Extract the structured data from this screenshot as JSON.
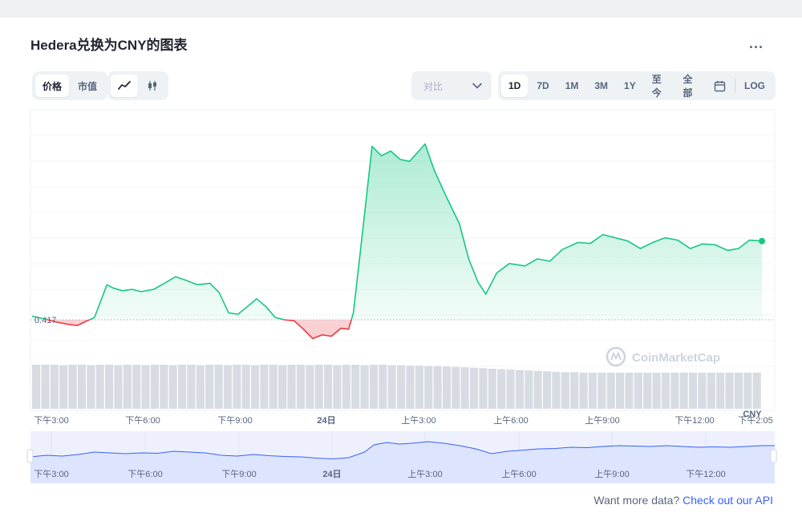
{
  "title": "Hedera兑换为CNY的图表",
  "more_label": "...",
  "metric_tabs": [
    {
      "label": "价格",
      "active": true
    },
    {
      "label": "市值",
      "active": false
    }
  ],
  "chart_type_icons": [
    {
      "icon": "line-chart-icon",
      "active": true
    },
    {
      "icon": "candlestick-icon",
      "active": false
    }
  ],
  "compare": {
    "placeholder": "对比",
    "icon": "chevron-down-icon"
  },
  "ranges": [
    {
      "label": "1D",
      "active": true
    },
    {
      "label": "7D",
      "active": false
    },
    {
      "label": "1M",
      "active": false
    },
    {
      "label": "3M",
      "active": false
    },
    {
      "label": "1Y",
      "active": false
    },
    {
      "label": "至今",
      "active": false
    },
    {
      "label": "全部",
      "active": false
    }
  ],
  "calendar_icon": "calendar-icon",
  "log_label": "LOG",
  "watermark": "CoinMarketCap",
  "footer": {
    "text": "Want more data?",
    "link": "Check out our API"
  },
  "colors": {
    "up": "#16c784",
    "down": "#ea3943",
    "nav_line": "#3861fb",
    "nav_fill": "#dde4fd"
  },
  "chart_data": {
    "type": "line",
    "currency_label": "CNY",
    "reference_value": 0.417,
    "reference_label": "0.417",
    "x_ticks": [
      "下午3:00",
      "下午6:00",
      "下午9:00",
      "24日",
      "上午3:00",
      "上午6:00",
      "上午9:00",
      "下午12:00",
      "下午2:05"
    ],
    "nav_ticks": [
      "下午3:00",
      "下午6:00",
      "下午9:00",
      "24日",
      "上午3:00",
      "上午6:00",
      "上午9:00",
      "下午12:00"
    ],
    "price_series": [
      [
        0,
        0.4178
      ],
      [
        0.4,
        0.4172
      ],
      [
        0.8,
        0.4165
      ],
      [
        1.2,
        0.416
      ],
      [
        1.45,
        0.4158
      ],
      [
        1.7,
        0.4166
      ],
      [
        2.0,
        0.4175
      ],
      [
        2.2,
        0.421
      ],
      [
        2.4,
        0.4245
      ],
      [
        2.6,
        0.4238
      ],
      [
        2.9,
        0.4232
      ],
      [
        3.2,
        0.4235
      ],
      [
        3.5,
        0.423
      ],
      [
        3.9,
        0.4235
      ],
      [
        4.3,
        0.425
      ],
      [
        4.6,
        0.4262
      ],
      [
        4.9,
        0.4255
      ],
      [
        5.3,
        0.4245
      ],
      [
        5.7,
        0.4248
      ],
      [
        6.0,
        0.4228
      ],
      [
        6.3,
        0.4185
      ],
      [
        6.6,
        0.4182
      ],
      [
        6.9,
        0.4198
      ],
      [
        7.2,
        0.4215
      ],
      [
        7.5,
        0.4198
      ],
      [
        7.8,
        0.4175
      ],
      [
        8.1,
        0.417
      ],
      [
        8.4,
        0.4168
      ],
      [
        8.7,
        0.415
      ],
      [
        9.0,
        0.413
      ],
      [
        9.3,
        0.4138
      ],
      [
        9.6,
        0.4135
      ],
      [
        9.9,
        0.4152
      ],
      [
        10.15,
        0.415
      ],
      [
        10.3,
        0.4185
      ],
      [
        10.5,
        0.43
      ],
      [
        10.75,
        0.445
      ],
      [
        10.9,
        0.454
      ],
      [
        11.2,
        0.452
      ],
      [
        11.5,
        0.453
      ],
      [
        11.8,
        0.4512
      ],
      [
        12.1,
        0.4508
      ],
      [
        12.4,
        0.453
      ],
      [
        12.6,
        0.4545
      ],
      [
        12.9,
        0.4488
      ],
      [
        13.3,
        0.443
      ],
      [
        13.7,
        0.4375
      ],
      [
        14.0,
        0.43
      ],
      [
        14.3,
        0.425
      ],
      [
        14.55,
        0.4225
      ],
      [
        14.9,
        0.427
      ],
      [
        15.3,
        0.429
      ],
      [
        15.8,
        0.4285
      ],
      [
        16.2,
        0.43
      ],
      [
        16.6,
        0.4295
      ],
      [
        17.0,
        0.432
      ],
      [
        17.5,
        0.4335
      ],
      [
        17.9,
        0.4333
      ],
      [
        18.3,
        0.4352
      ],
      [
        18.7,
        0.4345
      ],
      [
        19.1,
        0.4338
      ],
      [
        19.5,
        0.4322
      ],
      [
        19.9,
        0.4335
      ],
      [
        20.3,
        0.4345
      ],
      [
        20.7,
        0.434
      ],
      [
        21.1,
        0.4322
      ],
      [
        21.5,
        0.4332
      ],
      [
        21.9,
        0.433
      ],
      [
        22.3,
        0.4318
      ],
      [
        22.65,
        0.4322
      ],
      [
        23.0,
        0.434
      ],
      [
        23.4,
        0.4338
      ]
    ],
    "y_range": [
      0.41,
      0.457
    ],
    "volume_values": [
      1.0,
      1.0,
      1.0,
      0.99,
      1.0,
      1.0,
      0.99,
      1.0,
      1.0,
      0.99,
      1.0,
      1.0,
      0.99,
      1.0,
      1.0,
      0.99,
      1.0,
      1.0,
      0.99,
      1.0,
      1.0,
      0.99,
      1.0,
      1.0,
      0.99,
      1.0,
      1.0,
      0.99,
      1.0,
      1.0,
      0.99,
      1.0,
      1.0,
      0.99,
      1.0,
      1.0,
      0.99,
      1.0,
      1.0,
      0.99,
      0.99,
      0.98,
      0.98,
      0.97,
      0.97,
      0.96,
      0.95,
      0.94,
      0.93,
      0.92,
      0.91,
      0.9,
      0.89,
      0.88,
      0.87,
      0.86,
      0.85,
      0.84,
      0.83,
      0.83,
      0.82,
      0.82,
      0.82,
      0.82,
      0.82,
      0.82,
      0.82,
      0.82,
      0.82,
      0.82,
      0.82,
      0.82,
      0.82,
      0.82,
      0.82,
      0.82,
      0.82,
      0.82,
      0.82,
      0.82
    ],
    "navigator_series": [
      [
        0,
        0.5
      ],
      [
        0.5,
        0.46
      ],
      [
        1.0,
        0.48
      ],
      [
        1.5,
        0.44
      ],
      [
        2.0,
        0.38
      ],
      [
        2.5,
        0.4
      ],
      [
        3.0,
        0.42
      ],
      [
        3.5,
        0.4
      ],
      [
        4.0,
        0.41
      ],
      [
        4.5,
        0.36
      ],
      [
        5.0,
        0.38
      ],
      [
        5.5,
        0.4
      ],
      [
        6.0,
        0.46
      ],
      [
        6.5,
        0.48
      ],
      [
        7.0,
        0.44
      ],
      [
        7.5,
        0.47
      ],
      [
        8.0,
        0.49
      ],
      [
        8.5,
        0.5
      ],
      [
        9.0,
        0.53
      ],
      [
        9.5,
        0.55
      ],
      [
        10.0,
        0.52
      ],
      [
        10.5,
        0.38
      ],
      [
        10.8,
        0.2
      ],
      [
        11.2,
        0.14
      ],
      [
        11.6,
        0.18
      ],
      [
        12.0,
        0.16
      ],
      [
        12.5,
        0.12
      ],
      [
        13.0,
        0.16
      ],
      [
        13.5,
        0.22
      ],
      [
        14.0,
        0.3
      ],
      [
        14.5,
        0.42
      ],
      [
        15.0,
        0.36
      ],
      [
        15.5,
        0.33
      ],
      [
        16.0,
        0.3
      ],
      [
        16.5,
        0.29
      ],
      [
        17.0,
        0.26
      ],
      [
        17.5,
        0.27
      ],
      [
        18.0,
        0.24
      ],
      [
        18.5,
        0.22
      ],
      [
        19.0,
        0.23
      ],
      [
        19.5,
        0.24
      ],
      [
        20.0,
        0.22
      ],
      [
        20.5,
        0.24
      ],
      [
        21.0,
        0.26
      ],
      [
        21.5,
        0.25
      ],
      [
        22.0,
        0.26
      ],
      [
        22.5,
        0.24
      ],
      [
        23.0,
        0.22
      ],
      [
        23.4,
        0.22
      ]
    ]
  }
}
